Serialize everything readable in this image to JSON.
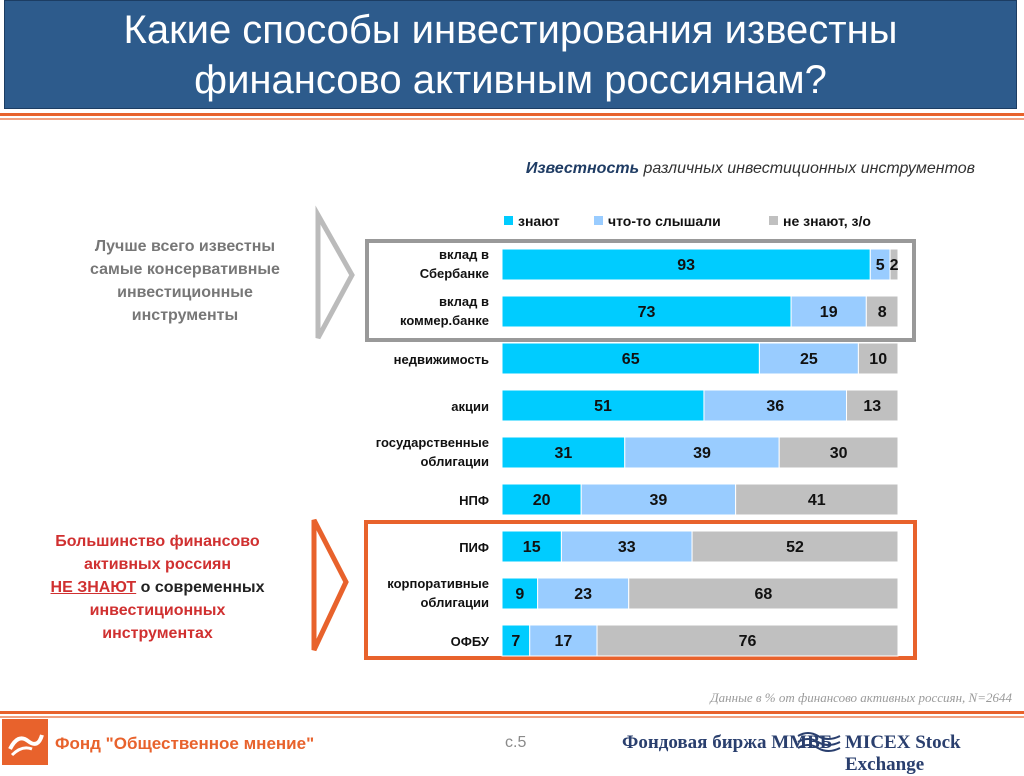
{
  "title": {
    "line1": "Какие способы инвестирования известны",
    "line2": "финансово активным россиянам?"
  },
  "subtitle": {
    "bold": "Известность",
    "rest": " различных инвестиционных инструментов"
  },
  "callouts": {
    "conservative": [
      "Лучше всего известны",
      "самые консервативные",
      "инвестиционные",
      "инструменты"
    ],
    "unknown": {
      "l1": "Большинство финансово",
      "l2": "активных россиян",
      "l3u": "НЕ ЗНАЮТ",
      "l3b": " о современных",
      "l4": "инвестиционных",
      "l5": "инструментах"
    }
  },
  "colors": {
    "know": "#00ccff",
    "heard": "#99ccff",
    "dontknow": "#c0c0c0",
    "accent": "#e8622c",
    "title_bg": "#2d5b8c"
  },
  "chart_data": {
    "type": "bar",
    "orientation": "horizontal",
    "stacked": true,
    "title": "Известность различных инвестиционных инструментов",
    "categories": [
      [
        "вклад в",
        "Сбербанке"
      ],
      [
        "вклад в",
        "коммер.банке"
      ],
      [
        "недвижимость"
      ],
      [
        "акции"
      ],
      [
        "государственные",
        "облигации"
      ],
      [
        "НПФ"
      ],
      [
        "ПИФ"
      ],
      [
        "корпоративные",
        "облигации"
      ],
      [
        "ОФБУ"
      ]
    ],
    "series": [
      {
        "name": "знают",
        "values": [
          93,
          73,
          65,
          51,
          31,
          20,
          15,
          9,
          7
        ]
      },
      {
        "name": "что-то слышали",
        "values": [
          5,
          19,
          25,
          36,
          39,
          39,
          33,
          23,
          17
        ]
      },
      {
        "name": "не знают, з/о",
        "values": [
          2,
          8,
          10,
          13,
          30,
          41,
          52,
          68,
          76
        ]
      }
    ],
    "xlim": [
      0,
      100
    ],
    "legend": "top"
  },
  "footer": {
    "note": "Данные в % от финансово активных россиян, N=2644",
    "fund": "Фонд \"Общественное мнение\"",
    "page": "с.5",
    "exchange1": "Фондовая биржа ММВБ",
    "exchange2": "MICEX Stock Exchange"
  }
}
